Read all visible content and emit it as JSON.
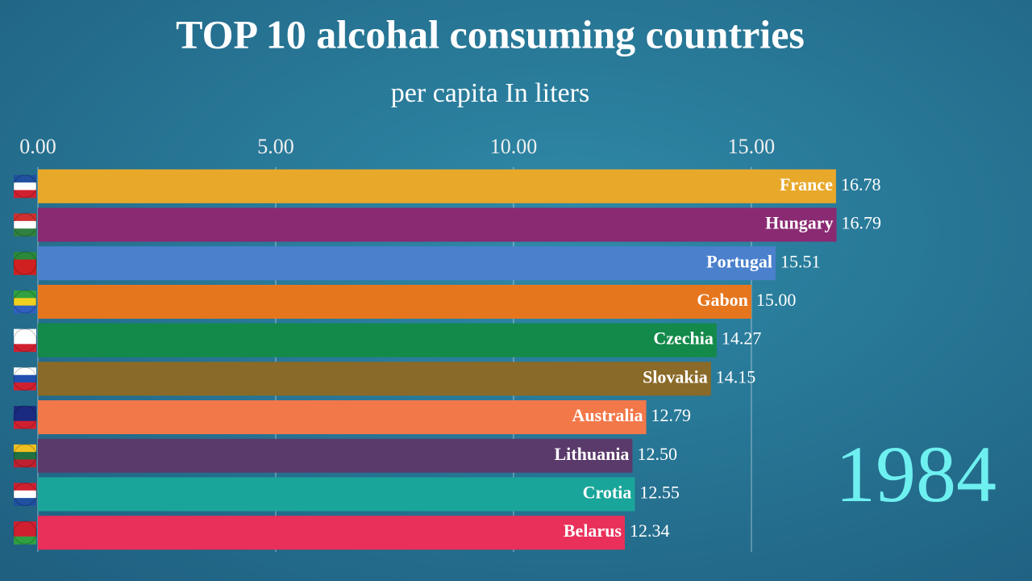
{
  "chart_data": {
    "type": "hbar",
    "title": "TOP 10 alcohal consuming countries",
    "subtitle": "per capita In liters",
    "annotation": "1984",
    "categories": [
      "France",
      "Hungary",
      "Portugal",
      "Gabon",
      "Czechia",
      "Slovakia",
      "Australia",
      "Lithuania",
      "Crotia",
      "Belarus"
    ],
    "values": [
      16.78,
      16.79,
      15.51,
      15.0,
      14.27,
      14.15,
      12.79,
      12.5,
      12.55,
      12.34
    ],
    "value_labels": [
      "16.78",
      "16.79",
      "15.51",
      "15.00",
      "14.27",
      "14.15",
      "12.79",
      "12.50",
      "12.55",
      "12.34"
    ],
    "colors": [
      "#e8a82a",
      "#8a2a72",
      "#4a80cc",
      "#e6761e",
      "#138a4a",
      "#8a6a28",
      "#f2784a",
      "#5a3a6a",
      "#1aa59a",
      "#e8305a"
    ],
    "xlim": [
      0,
      20.9
    ],
    "xticks": [
      {
        "value": 0,
        "label": "0.00"
      },
      {
        "value": 5,
        "label": "5.00"
      },
      {
        "value": 10,
        "label": "10.00"
      },
      {
        "value": 15,
        "label": "15.00"
      }
    ],
    "grid": true
  }
}
